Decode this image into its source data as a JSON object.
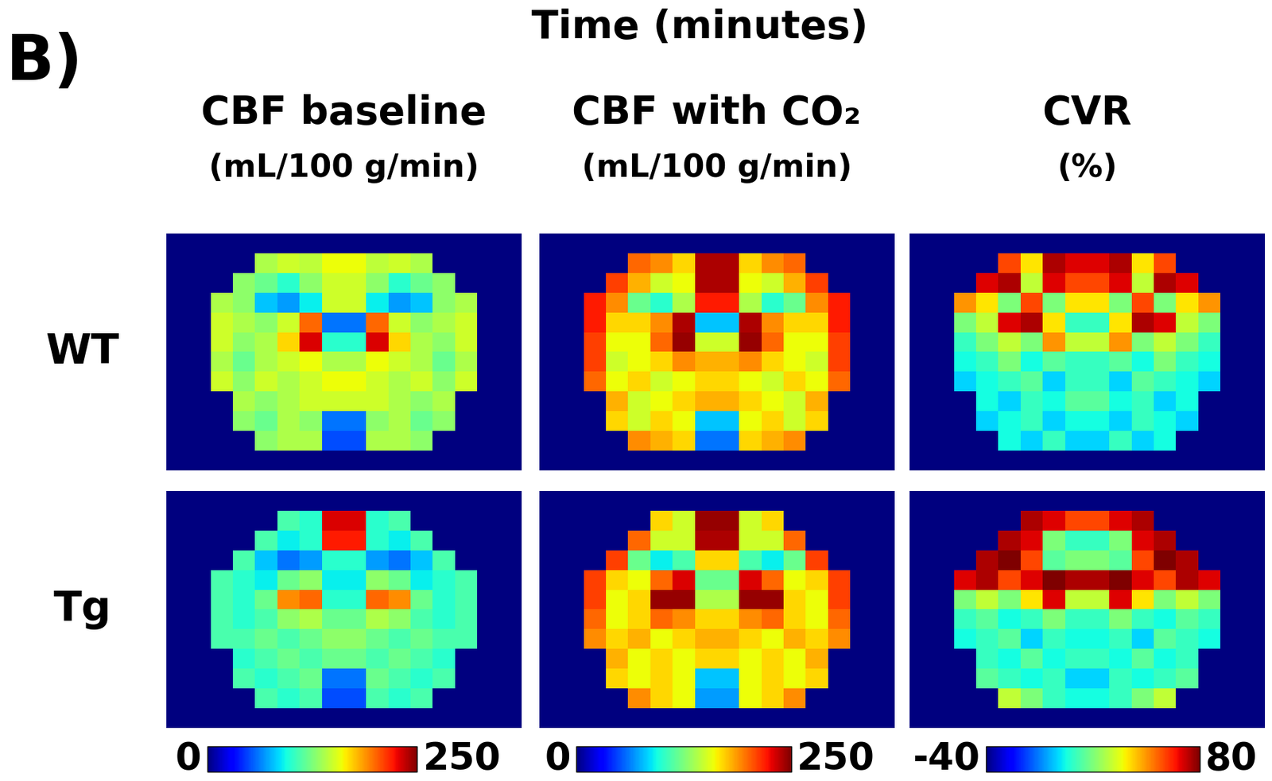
{
  "panel_label": "B)",
  "header": "Time (minutes)",
  "columns": [
    {
      "title": "CBF baseline",
      "unit": "(mL/100 g/min)",
      "colorbar": {
        "range": [
          0,
          250
        ],
        "ticks": [
          0,
          250
        ]
      }
    },
    {
      "title": "CBF with CO₂",
      "unit": "(mL/100 g/min)",
      "colorbar": {
        "range": [
          0,
          250
        ],
        "ticks": [
          0,
          250
        ]
      }
    },
    {
      "title": "CVR",
      "unit": "(%)",
      "colorbar": {
        "range": [
          -40,
          80
        ],
        "ticks": [
          -40,
          80
        ]
      }
    }
  ],
  "rows": [
    "WT",
    "Tg"
  ],
  "chart_data": [
    {
      "type": "heatmap",
      "tick_labels": false,
      "cells": [
        [
          0,
          0,
          0,
          0,
          0,
          0,
          0,
          0,
          0,
          0,
          0,
          0,
          0,
          0,
          0,
          0
        ],
        [
          0,
          0,
          0,
          0,
          140,
          150,
          145,
          160,
          160,
          145,
          150,
          140,
          0,
          0,
          0,
          0
        ],
        [
          0,
          0,
          0,
          130,
          120,
          100,
          130,
          150,
          150,
          130,
          100,
          120,
          130,
          0,
          0,
          0
        ],
        [
          0,
          0,
          140,
          130,
          80,
          70,
          90,
          150,
          150,
          90,
          70,
          80,
          130,
          140,
          0,
          0
        ],
        [
          0,
          0,
          150,
          140,
          130,
          150,
          200,
          60,
          60,
          200,
          150,
          130,
          140,
          150,
          0,
          0
        ],
        [
          0,
          0,
          150,
          130,
          140,
          170,
          230,
          100,
          100,
          230,
          170,
          140,
          130,
          150,
          0,
          0
        ],
        [
          0,
          0,
          140,
          120,
          140,
          150,
          160,
          140,
          140,
          160,
          150,
          140,
          120,
          140,
          0,
          0
        ],
        [
          0,
          0,
          150,
          130,
          150,
          140,
          150,
          160,
          160,
          150,
          140,
          150,
          130,
          150,
          0,
          0
        ],
        [
          0,
          0,
          0,
          140,
          130,
          140,
          150,
          150,
          150,
          150,
          140,
          130,
          140,
          0,
          0,
          0
        ],
        [
          0,
          0,
          0,
          130,
          120,
          140,
          130,
          60,
          60,
          130,
          140,
          120,
          130,
          0,
          0,
          0
        ],
        [
          0,
          0,
          0,
          0,
          130,
          140,
          140,
          50,
          50,
          140,
          140,
          130,
          0,
          0,
          0,
          0
        ],
        [
          0,
          0,
          0,
          0,
          0,
          0,
          0,
          0,
          0,
          0,
          0,
          0,
          0,
          0,
          0,
          0
        ]
      ]
    },
    {
      "type": "heatmap",
      "tick_labels": false,
      "cells": [
        [
          0,
          0,
          0,
          0,
          0,
          0,
          0,
          0,
          0,
          0,
          0,
          0,
          0,
          0,
          0,
          0
        ],
        [
          0,
          0,
          0,
          0,
          200,
          190,
          170,
          240,
          240,
          170,
          190,
          200,
          0,
          0,
          0,
          0
        ],
        [
          0,
          0,
          0,
          210,
          180,
          150,
          160,
          240,
          240,
          160,
          150,
          180,
          210,
          0,
          0,
          0
        ],
        [
          0,
          0,
          220,
          190,
          120,
          100,
          140,
          220,
          220,
          140,
          100,
          120,
          190,
          220,
          0,
          0
        ],
        [
          0,
          0,
          220,
          170,
          170,
          190,
          240,
          80,
          80,
          240,
          190,
          170,
          170,
          220,
          0,
          0
        ],
        [
          0,
          0,
          210,
          160,
          160,
          200,
          245,
          150,
          150,
          245,
          200,
          160,
          160,
          210,
          0,
          0
        ],
        [
          0,
          0,
          210,
          150,
          160,
          170,
          190,
          180,
          180,
          190,
          170,
          160,
          150,
          210,
          0,
          0
        ],
        [
          0,
          0,
          200,
          160,
          170,
          150,
          160,
          170,
          170,
          160,
          150,
          170,
          160,
          200,
          0,
          0
        ],
        [
          0,
          0,
          0,
          180,
          150,
          160,
          170,
          180,
          180,
          170,
          160,
          150,
          180,
          0,
          0,
          0
        ],
        [
          0,
          0,
          0,
          170,
          150,
          170,
          160,
          80,
          80,
          160,
          170,
          150,
          170,
          0,
          0,
          0
        ],
        [
          0,
          0,
          0,
          0,
          190,
          180,
          170,
          60,
          60,
          170,
          180,
          190,
          0,
          0,
          0,
          0
        ],
        [
          0,
          0,
          0,
          0,
          0,
          0,
          0,
          0,
          0,
          0,
          0,
          0,
          0,
          0,
          0,
          0
        ]
      ]
    },
    {
      "type": "heatmap",
      "tick_labels": false,
      "cells": [
        [
          -40,
          -40,
          -40,
          -40,
          -40,
          -40,
          -40,
          -40,
          -40,
          -40,
          -40,
          -40,
          -40,
          -40,
          -40,
          -40
        ],
        [
          -40,
          -40,
          -40,
          -40,
          60,
          40,
          75,
          70,
          70,
          75,
          40,
          60,
          -40,
          -40,
          -40,
          -40
        ],
        [
          -40,
          -40,
          -40,
          70,
          75,
          30,
          70,
          60,
          60,
          70,
          30,
          75,
          70,
          -40,
          -40,
          -40
        ],
        [
          -40,
          -40,
          50,
          40,
          20,
          60,
          20,
          40,
          40,
          20,
          60,
          20,
          40,
          50,
          -40,
          -40
        ],
        [
          -40,
          -40,
          20,
          30,
          70,
          75,
          40,
          10,
          10,
          40,
          75,
          70,
          30,
          20,
          -40,
          -40
        ],
        [
          -40,
          -40,
          10,
          20,
          30,
          20,
          50,
          30,
          30,
          50,
          20,
          30,
          20,
          10,
          -40,
          -40
        ],
        [
          -40,
          -40,
          5,
          10,
          20,
          5,
          15,
          10,
          10,
          15,
          5,
          20,
          10,
          5,
          -40,
          -40
        ],
        [
          -40,
          -40,
          0,
          5,
          10,
          15,
          0,
          10,
          10,
          0,
          15,
          10,
          5,
          0,
          -40,
          -40
        ],
        [
          -40,
          -40,
          -40,
          5,
          0,
          10,
          5,
          15,
          15,
          5,
          10,
          0,
          5,
          -40,
          -40,
          -40
        ],
        [
          -40,
          -40,
          -40,
          0,
          5,
          10,
          0,
          5,
          5,
          0,
          10,
          5,
          0,
          -40,
          -40,
          -40
        ],
        [
          -40,
          -40,
          -40,
          -40,
          5,
          0,
          10,
          0,
          0,
          10,
          0,
          5,
          -40,
          -40,
          -40,
          -40
        ],
        [
          -40,
          -40,
          -40,
          -40,
          -40,
          -40,
          -40,
          -40,
          -40,
          -40,
          -40,
          -40,
          -40,
          -40,
          -40,
          -40
        ]
      ]
    },
    {
      "type": "heatmap",
      "tick_labels": false,
      "cells": [
        [
          0,
          0,
          0,
          0,
          0,
          0,
          0,
          0,
          0,
          0,
          0,
          0,
          0,
          0,
          0,
          0
        ],
        [
          0,
          0,
          0,
          0,
          0,
          110,
          100,
          230,
          230,
          100,
          110,
          0,
          0,
          0,
          0,
          0
        ],
        [
          0,
          0,
          0,
          0,
          110,
          90,
          100,
          220,
          220,
          100,
          90,
          110,
          0,
          0,
          0,
          0
        ],
        [
          0,
          0,
          0,
          110,
          80,
          60,
          70,
          100,
          100,
          70,
          60,
          80,
          110,
          0,
          0,
          0
        ],
        [
          0,
          0,
          110,
          100,
          90,
          120,
          130,
          90,
          90,
          130,
          120,
          90,
          100,
          110,
          0,
          0
        ],
        [
          0,
          0,
          110,
          100,
          120,
          190,
          200,
          100,
          100,
          200,
          190,
          120,
          100,
          110,
          0,
          0
        ],
        [
          0,
          0,
          110,
          100,
          110,
          130,
          140,
          120,
          120,
          140,
          130,
          110,
          100,
          110,
          0,
          0
        ],
        [
          0,
          0,
          110,
          110,
          120,
          110,
          120,
          130,
          130,
          120,
          110,
          120,
          110,
          110,
          0,
          0
        ],
        [
          0,
          0,
          0,
          100,
          110,
          120,
          110,
          120,
          120,
          110,
          120,
          110,
          100,
          0,
          0,
          0
        ],
        [
          0,
          0,
          0,
          110,
          100,
          110,
          120,
          60,
          60,
          120,
          110,
          100,
          110,
          0,
          0,
          0
        ],
        [
          0,
          0,
          0,
          0,
          110,
          100,
          110,
          50,
          50,
          110,
          100,
          110,
          0,
          0,
          0,
          0
        ],
        [
          0,
          0,
          0,
          0,
          0,
          0,
          0,
          0,
          0,
          0,
          0,
          0,
          0,
          0,
          0,
          0
        ]
      ]
    },
    {
      "type": "heatmap",
      "tick_labels": false,
      "cells": [
        [
          0,
          0,
          0,
          0,
          0,
          0,
          0,
          0,
          0,
          0,
          0,
          0,
          0,
          0,
          0,
          0
        ],
        [
          0,
          0,
          0,
          0,
          0,
          170,
          150,
          245,
          245,
          150,
          170,
          0,
          0,
          0,
          0,
          0
        ],
        [
          0,
          0,
          0,
          0,
          200,
          150,
          150,
          240,
          240,
          150,
          150,
          200,
          0,
          0,
          0,
          0
        ],
        [
          0,
          0,
          0,
          210,
          120,
          90,
          110,
          170,
          170,
          110,
          90,
          120,
          210,
          0,
          0,
          0
        ],
        [
          0,
          0,
          210,
          170,
          160,
          200,
          230,
          120,
          120,
          230,
          200,
          160,
          170,
          210,
          0,
          0
        ],
        [
          0,
          0,
          210,
          160,
          170,
          245,
          245,
          140,
          140,
          245,
          245,
          170,
          160,
          210,
          0,
          0
        ],
        [
          0,
          0,
          200,
          160,
          170,
          200,
          190,
          170,
          170,
          190,
          200,
          170,
          160,
          200,
          0,
          0
        ],
        [
          0,
          0,
          190,
          170,
          180,
          160,
          170,
          180,
          180,
          170,
          160,
          180,
          170,
          190,
          0,
          0
        ],
        [
          0,
          0,
          0,
          180,
          160,
          170,
          160,
          170,
          170,
          160,
          170,
          160,
          180,
          0,
          0,
          0
        ],
        [
          0,
          0,
          0,
          170,
          160,
          170,
          160,
          80,
          80,
          160,
          170,
          160,
          170,
          0,
          0,
          0
        ],
        [
          0,
          0,
          0,
          0,
          190,
          170,
          160,
          70,
          70,
          160,
          170,
          190,
          0,
          0,
          0,
          0
        ],
        [
          0,
          0,
          0,
          0,
          0,
          0,
          0,
          0,
          0,
          0,
          0,
          0,
          0,
          0,
          0,
          0
        ]
      ]
    },
    {
      "type": "heatmap",
      "tick_labels": false,
      "cells": [
        [
          -40,
          -40,
          -40,
          -40,
          -40,
          -40,
          -40,
          -40,
          -40,
          -40,
          -40,
          -40,
          -40,
          -40,
          -40,
          -40
        ],
        [
          -40,
          -40,
          -40,
          -40,
          -40,
          75,
          70,
          60,
          60,
          70,
          75,
          -40,
          -40,
          -40,
          -40,
          -40
        ],
        [
          -40,
          -40,
          -40,
          -40,
          75,
          70,
          20,
          10,
          10,
          20,
          70,
          75,
          -40,
          -40,
          -40,
          -40
        ],
        [
          -40,
          -40,
          -40,
          75,
          80,
          60,
          15,
          20,
          20,
          15,
          60,
          80,
          75,
          -40,
          -40,
          -40
        ],
        [
          -40,
          -40,
          70,
          75,
          60,
          70,
          80,
          75,
          75,
          80,
          70,
          60,
          75,
          70,
          -40,
          -40
        ],
        [
          -40,
          -40,
          20,
          30,
          20,
          40,
          70,
          30,
          30,
          70,
          40,
          20,
          30,
          20,
          -40,
          -40
        ],
        [
          -40,
          -40,
          10,
          15,
          5,
          10,
          20,
          10,
          10,
          20,
          10,
          5,
          15,
          10,
          -40,
          -40
        ],
        [
          -40,
          -40,
          5,
          10,
          15,
          0,
          10,
          5,
          5,
          10,
          0,
          15,
          10,
          5,
          -40,
          -40
        ],
        [
          -40,
          -40,
          -40,
          10,
          5,
          15,
          5,
          10,
          10,
          5,
          15,
          5,
          10,
          -40,
          -40,
          -40
        ],
        [
          -40,
          -40,
          -40,
          15,
          10,
          5,
          10,
          0,
          0,
          10,
          5,
          10,
          15,
          -40,
          -40,
          -40
        ],
        [
          -40,
          -40,
          -40,
          -40,
          30,
          20,
          10,
          5,
          5,
          10,
          20,
          30,
          -40,
          -40,
          -40,
          -40
        ],
        [
          -40,
          -40,
          -40,
          -40,
          -40,
          -40,
          -40,
          -40,
          -40,
          -40,
          -40,
          -40,
          -40,
          -40,
          -40,
          -40
        ]
      ]
    }
  ]
}
